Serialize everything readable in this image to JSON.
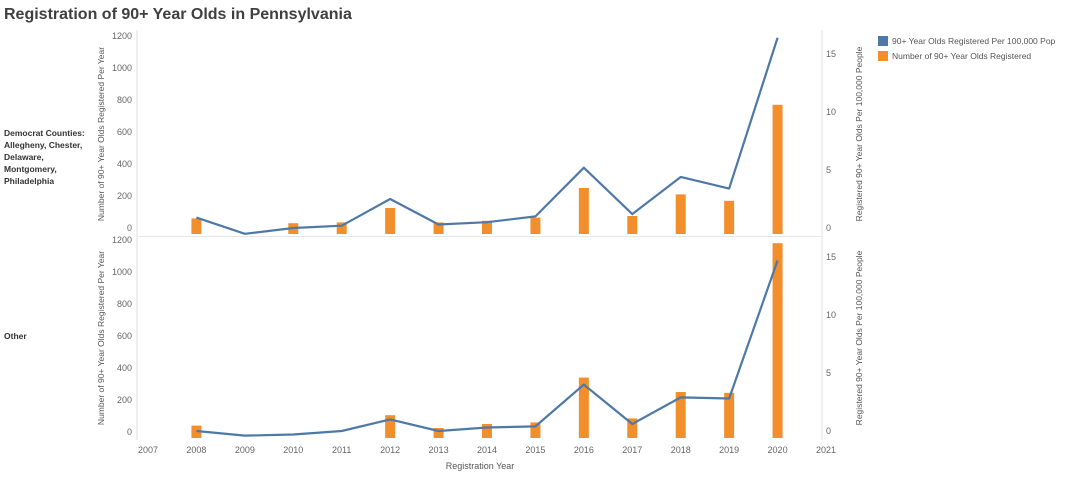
{
  "title": "Registration of 90+ Year Olds in Pennsylvania",
  "legend": {
    "items": [
      {
        "label": "90+ Year Olds Registered Per 100,000 Pop",
        "color": "#4e79a7"
      },
      {
        "label": "Number of 90+ Year Olds Registered",
        "color": "#f28e2b"
      }
    ]
  },
  "chart_data": {
    "type": "bar",
    "xlabel": "Registration Year",
    "x_ticks": [
      "2007",
      "2008",
      "2009",
      "2010",
      "2011",
      "2012",
      "2013",
      "2014",
      "2015",
      "2016",
      "2017",
      "2018",
      "2019",
      "2020",
      "2021"
    ],
    "categories": [
      "2008",
      "2009",
      "2010",
      "2011",
      "2012",
      "2013",
      "2014",
      "2015",
      "2016",
      "2017",
      "2018",
      "2019",
      "2020"
    ],
    "panels": [
      {
        "row_label": "Democrat Counties: Allegheny, Chester, Delaware, Montgomery, Philadelphia",
        "ylabel_left": "Number of 90+ Year Olds Registered Per Year",
        "ylabel_right": "Registered 90+ Year Olds Per 100,000 People",
        "ylim_left": [
          0,
          1250
        ],
        "yticks_left": [
          "0",
          "200",
          "400",
          "600",
          "800",
          "1000",
          "1200"
        ],
        "ylim_right": [
          0,
          17
        ],
        "yticks_right": [
          "0",
          "5",
          "10",
          "15"
        ],
        "series": [
          {
            "name": "Number of 90+ Year Olds Registered",
            "axis": "left",
            "mark": "bar",
            "values": [
              60,
              null,
              30,
              35,
              125,
              35,
              45,
              65,
              250,
              75,
              210,
              170,
              770
            ]
          },
          {
            "name": "90+ Year Olds Registered Per 100,000 Pop",
            "axis": "right",
            "mark": "line",
            "values": [
              0.9,
              -0.5,
              0.0,
              0.2,
              2.5,
              0.3,
              0.5,
              1.0,
              5.2,
              1.2,
              4.4,
              3.4,
              16.4
            ]
          }
        ]
      },
      {
        "row_label": "Other",
        "ylabel_left": "Number of 90+ Year Olds Registered Per Year",
        "ylabel_right": "Registered 90+ Year Olds Per 100,000 People",
        "ylim_left": [
          0,
          1230
        ],
        "yticks_left": [
          "0",
          "200",
          "400",
          "600",
          "800",
          "1000",
          "1200"
        ],
        "ylim_right": [
          0,
          16.5
        ],
        "yticks_right": [
          "0",
          "5",
          "10",
          "15"
        ],
        "series": [
          {
            "name": "Number of 90+ Year Olds Registered",
            "axis": "left",
            "mark": "bar",
            "values": [
              40,
              null,
              null,
              null,
              105,
              25,
              50,
              60,
              340,
              85,
              250,
              245,
              1180
            ]
          },
          {
            "name": "90+ Year Olds Registered Per 100,000 Pop",
            "axis": "right",
            "mark": "line",
            "values": [
              0.0,
              -0.4,
              -0.3,
              0.0,
              1.0,
              0.0,
              0.3,
              0.4,
              4.0,
              0.6,
              2.9,
              2.8,
              14.7
            ]
          }
        ]
      }
    ]
  }
}
